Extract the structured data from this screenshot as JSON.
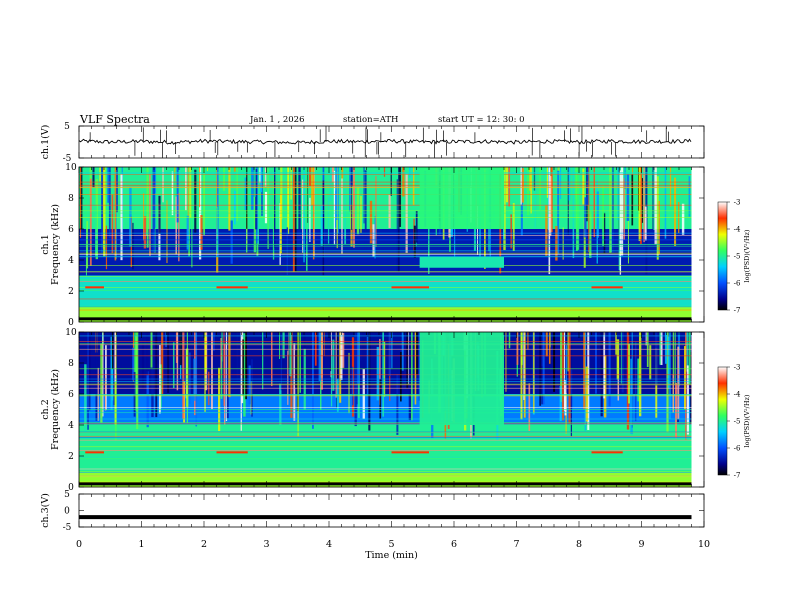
{
  "header": {
    "title": "VLF  Spectra",
    "date": "Jan.  1  ,  2026",
    "station": "station=ATH",
    "start": "start  UT  =    12: 30: 0"
  },
  "chart_data": [
    {
      "type": "line",
      "panel": "ch1-waveform",
      "ylabel": "ch.1(V)",
      "ylim": [
        -5,
        5
      ],
      "yticks": [
        "5",
        "-5"
      ],
      "xlim": [
        0,
        10
      ],
      "x": [
        0,
        0.5,
        1,
        1.5,
        2,
        2.5,
        3,
        3.5,
        4,
        4.5,
        5,
        5.5,
        6,
        6.5,
        7,
        7.5,
        8,
        8.5,
        9,
        9.5,
        9.8
      ],
      "values": [
        0.3,
        0.0,
        0.2,
        -0.1,
        0.3,
        0.1,
        0.0,
        -0.2,
        0.2,
        0.1,
        0.3,
        0.0,
        0.1,
        0.2,
        -0.1,
        0.2,
        0.0,
        0.3,
        0.1,
        0.2,
        0.3
      ]
    },
    {
      "type": "heatmap",
      "panel": "ch1-spectrogram",
      "ylabel": "ch.1\nFrequency  (kHz)",
      "ylabel_ch": "ch.1",
      "ylabel_freq": "Frequency  (kHz)",
      "ylim": [
        0,
        10
      ],
      "yticks": [
        "0",
        "2",
        "4",
        "6",
        "8",
        "10"
      ],
      "xlim": [
        0,
        10
      ],
      "colorbar": {
        "label": "log(PSD)(V²/Hz)",
        "range": [
          -7,
          -3
        ],
        "ticks": [
          "-3",
          "-4",
          "-5",
          "-6",
          "-7"
        ]
      },
      "bands": [
        {
          "f_from": 0,
          "f_to": 1,
          "level": -4.5
        },
        {
          "f_from": 1,
          "f_to": 3,
          "level": -5.2
        },
        {
          "f_from": 3,
          "f_to": 6,
          "level": -6.4
        },
        {
          "f_from": 6,
          "f_to": 10,
          "level": -5.0
        }
      ]
    },
    {
      "type": "heatmap",
      "panel": "ch2-spectrogram",
      "ylabel": "ch.2\nFrequency  (kHz)",
      "ylabel_ch": "ch.2",
      "ylabel_freq": "Frequency  (kHz)",
      "ylim": [
        0,
        10
      ],
      "yticks": [
        "0",
        "2",
        "4",
        "6",
        "8",
        "10"
      ],
      "xlim": [
        0,
        10
      ],
      "colorbar": {
        "label": "log(PSD)(V²/Hz)",
        "range": [
          -7,
          -3
        ],
        "ticks": [
          "-3",
          "-4",
          "-5",
          "-6",
          "-7"
        ]
      },
      "bands": [
        {
          "f_from": 0,
          "f_to": 1,
          "level": -4.5
        },
        {
          "f_from": 1,
          "f_to": 4,
          "level": -5.0
        },
        {
          "f_from": 4,
          "f_to": 6,
          "level": -5.8
        },
        {
          "f_from": 6,
          "f_to": 10,
          "level": -6.5
        }
      ]
    },
    {
      "type": "line",
      "panel": "ch3-waveform",
      "ylabel": "ch.3(V)",
      "ylim": [
        -5,
        5
      ],
      "yticks": [
        "5",
        "0",
        "-5"
      ],
      "xlim": [
        0,
        10
      ],
      "xticks": [
        "0",
        "1",
        "2",
        "3",
        "4",
        "5",
        "6",
        "7",
        "8",
        "9",
        "10"
      ],
      "xlabel": "Time  (min)",
      "x": [
        0,
        9.8
      ],
      "values": [
        -2,
        -2
      ]
    }
  ]
}
